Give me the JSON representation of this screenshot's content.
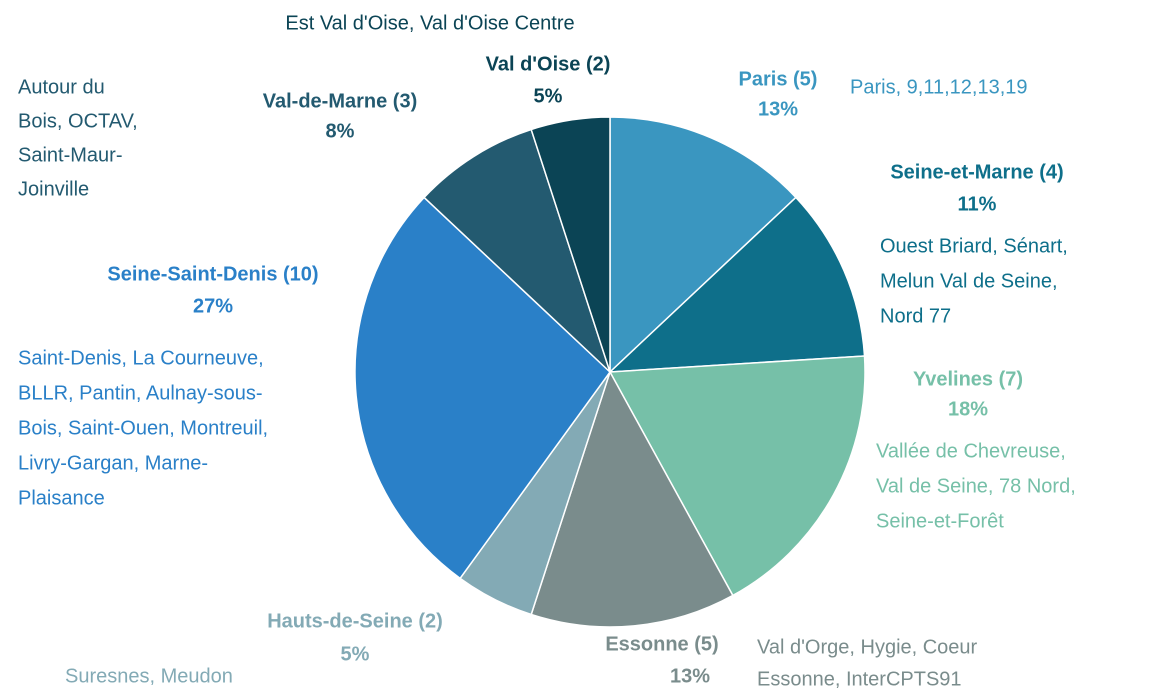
{
  "chart_data": {
    "type": "pie",
    "categories": [
      "Paris (5)",
      "Seine-et-Marne (4)",
      "Yvelines (7)",
      "Essonne (5)",
      "Hauts-de-Seine (2)",
      "Seine-Saint-Denis (10)",
      "Val-de-Marne (3)",
      "Val d'Oise (2)"
    ],
    "values": [
      13,
      11,
      18,
      13,
      5,
      27,
      8,
      5
    ],
    "value_labels": [
      "13%",
      "11%",
      "18%",
      "13%",
      "5%",
      "27%",
      "8%",
      "5%"
    ],
    "colors": [
      "#3a96c0",
      "#0e6f8a",
      "#76c0a8",
      "#7a8c8c",
      "#83aab5",
      "#2a80c8",
      "#235a70",
      "#0b4455"
    ],
    "descriptions": [
      [
        "Paris, 9,11,12,13,19"
      ],
      [
        "Ouest Briard, Sénart,",
        "Melun Val de Seine,",
        "Nord 77"
      ],
      [
        "Vallée de Chevreuse,",
        "Val de Seine, 78 Nord,",
        "Seine-et-Forêt"
      ],
      [
        "Val d'Orge, Hygie, Coeur",
        "Essonne, InterCPTS91"
      ],
      [
        "Suresnes, Meudon"
      ],
      [
        "Saint-Denis, La Courneuve,",
        "BLLR, Pantin, Aulnay-sous-",
        "Bois, Saint-Ouen, Montreuil,",
        "Livry-Gargan, Marne-",
        "Plaisance"
      ],
      [
        "Autour     du",
        "Bois, OCTAV,",
        "Saint-Maur-",
        "Joinville"
      ],
      [
        "Est Val d'Oise, Val d'Oise Centre"
      ]
    ]
  }
}
